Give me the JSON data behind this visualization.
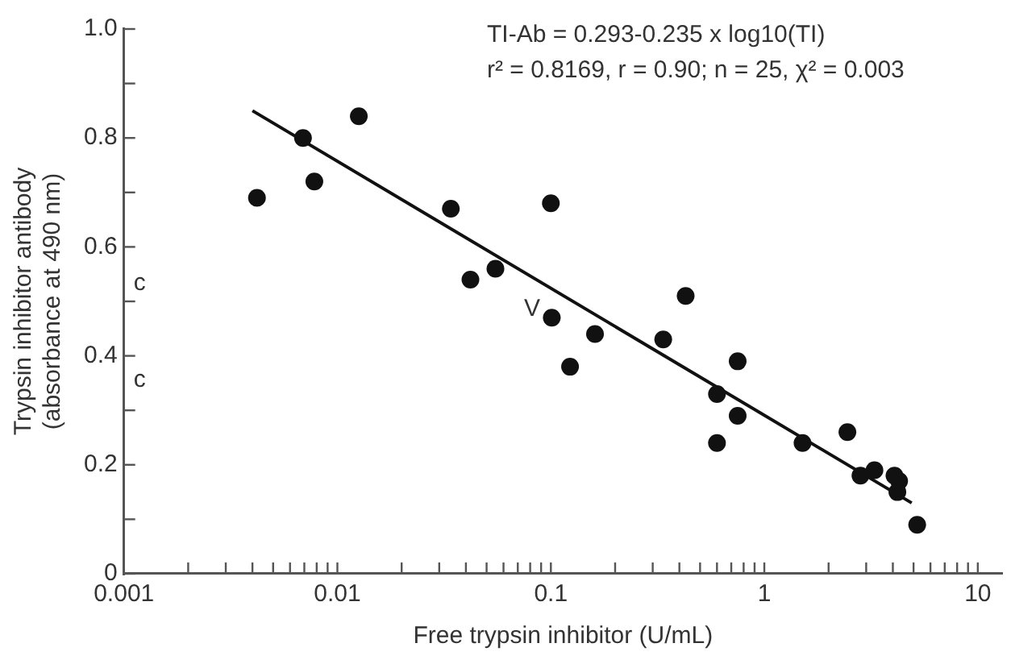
{
  "chart_data": {
    "type": "scatter",
    "xlabel": "Free trypsin inhibitor (U/mL)",
    "ylabel": "Trypsin inhibitor antibody (absorbance at 490 nm)",
    "log": "x",
    "xlim": [
      0.001,
      13
    ],
    "xticks": [
      0.001,
      {
        "value": 0.002,
        "label": null
      },
      {
        "value": 0.003,
        "label": null
      },
      {
        "value": 0.004,
        "label": null
      },
      {
        "value": 0.005,
        "label": null
      },
      {
        "value": 0.006,
        "label": null
      },
      {
        "value": 0.007,
        "label": null
      },
      {
        "value": 0.008,
        "label": null
      },
      {
        "value": 0.009,
        "label": null
      },
      0.01,
      {
        "value": 0.02,
        "label": null
      },
      {
        "value": 0.03,
        "label": null
      },
      {
        "value": 0.04,
        "label": null
      },
      {
        "value": 0.05,
        "label": null
      },
      {
        "value": 0.06,
        "label": null
      },
      {
        "value": 0.07,
        "label": null
      },
      {
        "value": 0.08,
        "label": null
      },
      {
        "value": 0.09,
        "label": null
      },
      0.1,
      {
        "value": 0.2,
        "label": null
      },
      {
        "value": 0.3,
        "label": null
      },
      {
        "value": 0.4,
        "label": null
      },
      {
        "value": 0.5,
        "label": null
      },
      {
        "value": 0.6,
        "label": null
      },
      {
        "value": 0.7,
        "label": null
      },
      {
        "value": 0.8,
        "label": null
      },
      {
        "value": 0.9,
        "label": null
      },
      1,
      {
        "value": 2,
        "label": null
      },
      {
        "value": 3,
        "label": null
      },
      {
        "value": 4,
        "label": null
      },
      {
        "value": 5,
        "label": null
      },
      {
        "value": 6,
        "label": null
      },
      {
        "value": 7,
        "label": null
      },
      {
        "value": 8,
        "label": null
      },
      {
        "value": 9,
        "label": null
      },
      10
    ],
    "ylim": [
      0,
      1
    ],
    "yticks": [
      0,
      {
        "value": 0.1,
        "label": null
      },
      0.2,
      {
        "value": 0.3,
        "label": null
      },
      0.4,
      {
        "value": 0.5,
        "label": null
      },
      0.6,
      {
        "value": 0.7,
        "label": null
      },
      0.8,
      {
        "value": 0.9,
        "label": null
      },
      {
        "value": 1,
        "label": "1.0"
      }
    ],
    "grid": false,
    "legend": false,
    "marker": "circle",
    "series": [
      {
        "type": "scatter",
        "color": "#111111",
        "x": [
          0.0042,
          0.0069,
          0.0078,
          0.0126,
          0.034,
          0.1,
          0.042,
          0.055,
          0.101,
          0.123,
          0.161,
          0.336,
          0.428,
          0.75,
          0.6,
          0.75,
          0.6,
          1.51,
          2.45,
          2.82,
          3.28,
          4.07,
          4.28,
          4.2,
          5.2
        ],
        "values": [
          0.69,
          0.8,
          0.72,
          0.84,
          0.67,
          0.68,
          0.54,
          0.56,
          0.47,
          0.38,
          0.44,
          0.43,
          0.51,
          0.39,
          0.33,
          0.29,
          0.24,
          0.24,
          0.26,
          0.18,
          0.19,
          0.18,
          0.17,
          0.15,
          0.09
        ]
      },
      {
        "type": "line",
        "color": "#111111",
        "marker": "none",
        "line_style": "solid",
        "x": [
          0.004,
          4.9
        ],
        "values": [
          0.85,
          0.13
        ]
      }
    ],
    "annotations": [
      "TI-Ab = 0.293-0.235 x log10(TI)",
      "r² = 0.8169, r = 0.90; n = 25, χ² = 0.003",
      "V",
      "c",
      "c"
    ]
  }
}
